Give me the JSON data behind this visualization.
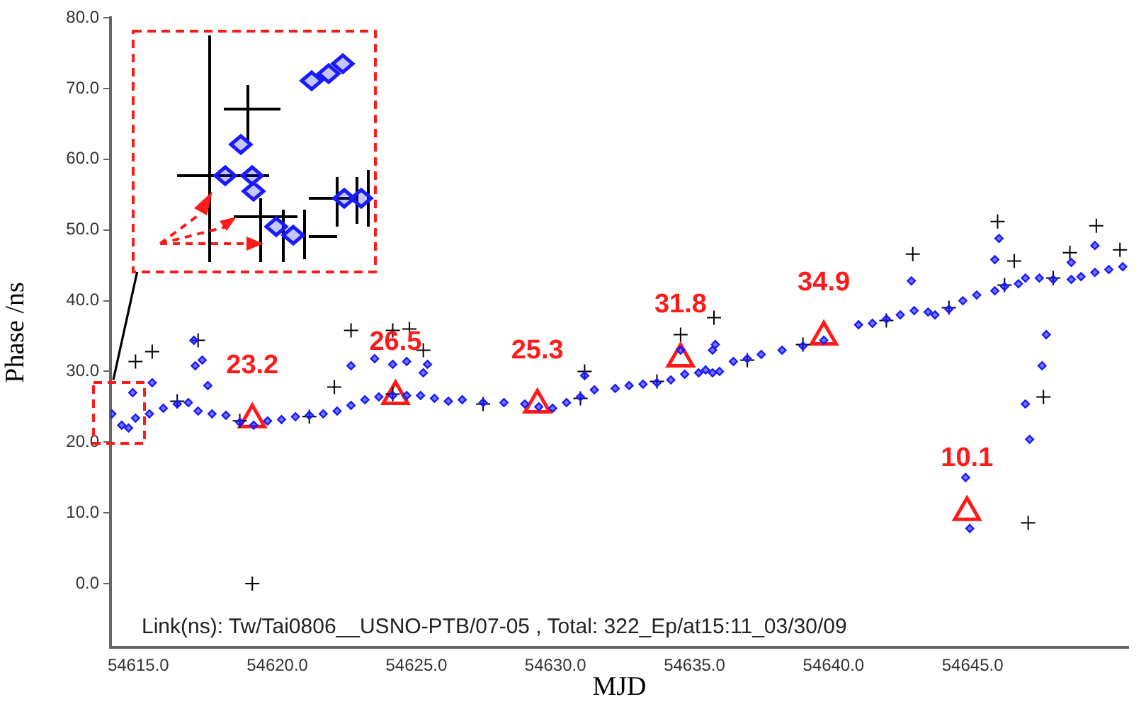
{
  "chart_data": {
    "type": "scatter",
    "xlabel": "MJD",
    "ylabel": "Phase /ns",
    "xlim": [
      54614.0,
      54650.6
    ],
    "ylim": [
      -9,
      80
    ],
    "xticks": [
      {
        "value": 54615,
        "label": "54615.0"
      },
      {
        "value": 54620,
        "label": "54620.0"
      },
      {
        "value": 54625,
        "label": "54625.0"
      },
      {
        "value": 54630,
        "label": "54630.0"
      },
      {
        "value": 54635,
        "label": "54635.0"
      },
      {
        "value": 54640,
        "label": "54640.0"
      },
      {
        "value": 54645,
        "label": "54645.0"
      }
    ],
    "yticks": [
      {
        "value": 0,
        "label": "0.0"
      },
      {
        "value": 10,
        "label": "10.0"
      },
      {
        "value": 20,
        "label": "20.0"
      },
      {
        "value": 30,
        "label": "30.0"
      },
      {
        "value": 40,
        "label": "40.0"
      },
      {
        "value": 50,
        "label": "50.0"
      },
      {
        "value": 60,
        "label": "60.0"
      },
      {
        "value": 70,
        "label": "70.0"
      },
      {
        "value": 80,
        "label": "80.0"
      }
    ],
    "grid": false,
    "legend": false,
    "annotations": [
      "Link(ns): Tw/Tai0806__USNO-PTB/07-05 , Total: 322_Ep/at15:11_03/30/09"
    ],
    "series": [
      {
        "marker": "diamond",
        "color": "#1a1aff",
        "x": [
          54614.05,
          54614.4,
          54614.65,
          54614.9,
          54615.4,
          54615.9,
          54616.4,
          54616.8,
          54617.15,
          54617.65,
          54618.15,
          54618.65,
          54619.15,
          54619.65,
          54620.15,
          54620.65,
          54621.15,
          54621.65,
          54622.15,
          54622.65,
          54623.15,
          54623.65,
          54624.15,
          54624.65,
          54625.15,
          54625.65,
          54626.15,
          54626.65,
          54627.4,
          54628.15,
          54628.9,
          54629.4,
          54629.9,
          54630.4,
          54630.9,
          54631.4,
          54632.15,
          54632.65,
          54633.15,
          54633.65,
          54634.15,
          54634.65,
          54635.15,
          54635.4,
          54635.65,
          54635.9,
          54636.4,
          54636.9,
          54637.4,
          54638.15,
          54638.9,
          54639.65,
          54640.9,
          54641.4,
          54641.9,
          54642.4,
          54642.9,
          54643.4,
          54643.65,
          54644.15,
          54644.65,
          54645.15,
          54645.8,
          54646.15,
          54646.65,
          54646.9,
          54647.4,
          54647.9,
          54648.55,
          54648.9,
          54649.4,
          54649.9,
          54650.4,
          54614.8,
          54615.5,
          54617.0,
          54617.05,
          54617.3,
          54617.5,
          54622.65,
          54623.5,
          54624.15,
          54624.65,
          54625.25,
          54625.4,
          54631.05,
          54634.5,
          54635.65,
          54635.75,
          54642.8,
          54644.75,
          54644.9,
          54645.8,
          54645.95,
          54646.9,
          54647.05,
          54647.5,
          54647.65,
          54648.55,
          54649.4
        ],
        "values": [
          24.0,
          22.4,
          22.0,
          23.4,
          24.0,
          24.8,
          25.4,
          25.6,
          24.4,
          24.0,
          23.8,
          22.8,
          22.4,
          23.0,
          23.2,
          23.6,
          23.8,
          24.0,
          24.4,
          25.2,
          26.0,
          26.4,
          26.6,
          26.6,
          26.6,
          26.2,
          25.8,
          26.0,
          25.6,
          25.6,
          25.4,
          25.0,
          24.8,
          25.6,
          26.4,
          27.4,
          27.6,
          28.0,
          28.2,
          28.4,
          28.8,
          29.6,
          29.8,
          30.2,
          29.8,
          30.0,
          31.4,
          31.8,
          32.4,
          33.0,
          33.6,
          34.4,
          36.6,
          36.8,
          37.4,
          38.0,
          38.6,
          38.4,
          38.0,
          38.8,
          40.0,
          40.8,
          41.4,
          42.0,
          42.4,
          43.2,
          43.2,
          43.0,
          43.0,
          43.4,
          44.0,
          44.4,
          44.8,
          27.0,
          28.4,
          34.4,
          30.8,
          31.6,
          28.0,
          30.8,
          31.8,
          31.0,
          31.4,
          29.8,
          31.0,
          29.4,
          33.0,
          33.0,
          33.8,
          42.8,
          15.0,
          7.8,
          45.8,
          48.8,
          25.4,
          20.4,
          30.8,
          35.2,
          45.4,
          47.8
        ]
      },
      {
        "marker": "cross",
        "color": "#000000",
        "x": [
          54614.9,
          54615.5,
          54617.15,
          54619.1,
          54622.05,
          54622.65,
          54624.15,
          54624.75,
          54625.25,
          54631.05,
          54634.5,
          54635.7,
          54642.85,
          54645.9,
          54646.5,
          54647.55,
          54647.0,
          54649.45,
          54648.5,
          54650.3,
          54616.4,
          54618.65,
          54621.15,
          54624.15,
          54627.4,
          54630.9,
          54633.65,
          54636.9,
          54638.9,
          54641.9,
          54644.15,
          54646.15,
          54647.9
        ],
        "values": [
          31.4,
          32.8,
          34.4,
          0.0,
          27.8,
          35.8,
          35.8,
          36.0,
          33.0,
          30.0,
          35.2,
          37.6,
          46.6,
          51.2,
          45.6,
          26.4,
          8.6,
          50.6,
          46.8,
          47.2,
          25.8,
          23.0,
          23.6,
          26.8,
          25.4,
          26.2,
          28.6,
          31.6,
          33.8,
          37.2,
          39.0,
          42.2,
          43.2
        ]
      },
      {
        "marker": "triangle",
        "color": "#ff1a1a",
        "x": [
          54619.1,
          54624.25,
          54629.35,
          54634.5,
          54639.65,
          54644.8
        ],
        "values": [
          23.2,
          26.5,
          25.3,
          31.8,
          34.9,
          10.1
        ],
        "value_labels": [
          "23.2",
          "26.5",
          "25.3",
          "31.8",
          "34.9",
          "10.1"
        ]
      }
    ]
  }
}
